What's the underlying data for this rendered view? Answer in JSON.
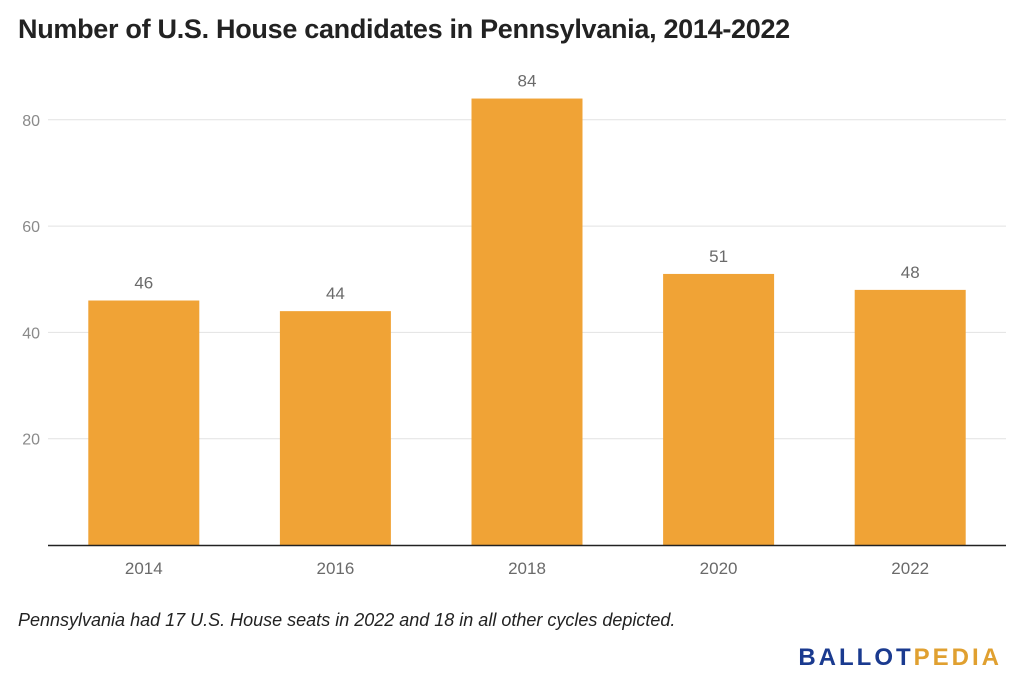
{
  "chart_data": {
    "type": "bar",
    "title": "Number of U.S. House candidates in Pennsylvania, 2014-2022",
    "categories": [
      "2014",
      "2016",
      "2018",
      "2020",
      "2022"
    ],
    "values": [
      46,
      44,
      84,
      51,
      48
    ],
    "xlabel": "",
    "ylabel": "",
    "ylim": [
      0,
      88
    ],
    "yticks": [
      20,
      40,
      60,
      80
    ],
    "grid": true,
    "bar_color": "#F0A336",
    "data_labels": true
  },
  "footnote": "Pennsylvania had 17 U.S. House seats in 2022 and 18 in all other cycles depicted.",
  "logo": {
    "part1": "BALLOT",
    "part2": "PEDIA",
    "color1": "#1A3A8F",
    "color2": "#E0A030"
  }
}
